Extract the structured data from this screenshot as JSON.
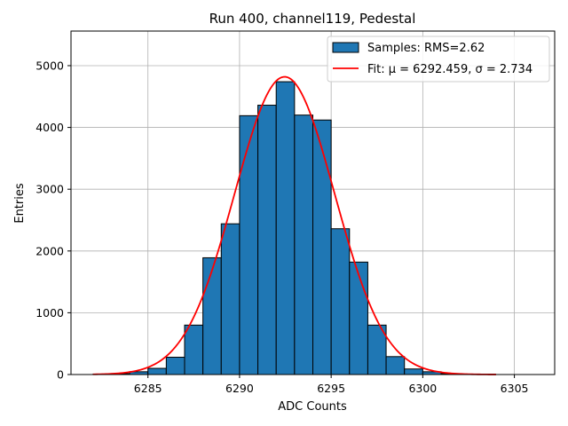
{
  "chart_data": {
    "type": "bar",
    "title": "Run 400, channel119, Pedestal",
    "xlabel": "ADC Counts",
    "ylabel": "Entries",
    "xlim": [
      6280.8,
      6307.2
    ],
    "ylim": [
      0,
      5560
    ],
    "xticks": [
      6285,
      6290,
      6295,
      6300,
      6305
    ],
    "yticks": [
      0,
      1000,
      2000,
      3000,
      4000,
      5000
    ],
    "grid": true,
    "legend_position": "top-right",
    "bin_width": 1,
    "bins": [
      {
        "x": 6282,
        "value": 5
      },
      {
        "x": 6283,
        "value": 15
      },
      {
        "x": 6284,
        "value": 45
      },
      {
        "x": 6285,
        "value": 100
      },
      {
        "x": 6286,
        "value": 280
      },
      {
        "x": 6287,
        "value": 800
      },
      {
        "x": 6288,
        "value": 1890
      },
      {
        "x": 6289,
        "value": 2440
      },
      {
        "x": 6290,
        "value": 4190
      },
      {
        "x": 6291,
        "value": 4360
      },
      {
        "x": 6292,
        "value": 4740
      },
      {
        "x": 6293,
        "value": 4200
      },
      {
        "x": 6294,
        "value": 4120
      },
      {
        "x": 6295,
        "value": 2360
      },
      {
        "x": 6296,
        "value": 1820
      },
      {
        "x": 6297,
        "value": 800
      },
      {
        "x": 6298,
        "value": 290
      },
      {
        "x": 6299,
        "value": 90
      },
      {
        "x": 6300,
        "value": 45
      },
      {
        "x": 6301,
        "value": 15
      },
      {
        "x": 6302,
        "value": 5
      }
    ],
    "fit": {
      "mu": 6292.459,
      "sigma": 2.734,
      "amplitude": 4820,
      "x_range": [
        6282,
        6304
      ]
    },
    "series": [
      {
        "name": "Samples: RMS=2.62",
        "kind": "histogram",
        "color": "#1f77b4"
      },
      {
        "name": "Fit: μ = 6292.459, σ = 2.734",
        "kind": "line",
        "color": "#ff0000"
      }
    ]
  }
}
